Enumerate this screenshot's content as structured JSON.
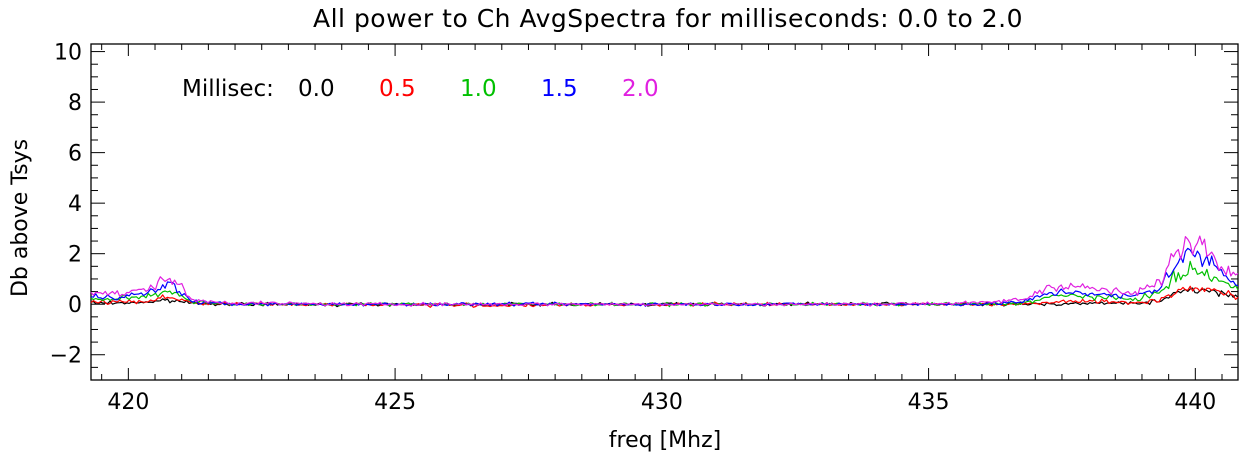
{
  "chart_data": {
    "type": "line",
    "title": "All power to Ch AvgSpectra for milliseconds:  0.0 to  2.0",
    "xlabel": "freq [Mhz]",
    "ylabel": "Db above Tsys",
    "xlim": [
      419.3,
      440.8
    ],
    "ylim": [
      -3,
      10.3
    ],
    "xticks": [
      420,
      425,
      430,
      435,
      440
    ],
    "xtick_labels": [
      "420",
      "425",
      "430",
      "435",
      "440"
    ],
    "yticks": [
      -2,
      0,
      2,
      4,
      6,
      8,
      10
    ],
    "ytick_labels": [
      "−2",
      "0",
      "2",
      "4",
      "6",
      "8",
      "10"
    ],
    "grid": false,
    "legend": {
      "prefix": "Millisec:",
      "placement": "top-left"
    },
    "series": [
      {
        "name": "0.0",
        "color": "#000000",
        "x": [
          419.3,
          419.8,
          420.3,
          420.8,
          421.2,
          422.0,
          424.0,
          427.0,
          430.0,
          433.0,
          436.0,
          436.8,
          437.3,
          437.8,
          438.3,
          438.8,
          439.3,
          439.6,
          439.9,
          440.2,
          440.5,
          440.8
        ],
        "values": [
          0.05,
          0.05,
          0.08,
          0.15,
          0.05,
          0.0,
          0.0,
          0.0,
          0.0,
          0.0,
          0.0,
          0.0,
          0.02,
          0.03,
          0.03,
          0.05,
          0.1,
          0.35,
          0.6,
          0.55,
          0.4,
          0.3
        ]
      },
      {
        "name": "0.5",
        "color": "#ff0000",
        "x": [
          419.3,
          419.8,
          420.3,
          420.8,
          421.2,
          422.0,
          424.0,
          427.0,
          430.0,
          433.0,
          436.0,
          436.8,
          437.3,
          437.8,
          438.3,
          438.8,
          439.3,
          439.6,
          439.9,
          440.2,
          440.5,
          440.8
        ],
        "values": [
          0.1,
          0.1,
          0.12,
          0.3,
          0.05,
          0.0,
          0.0,
          -0.05,
          0.0,
          0.0,
          0.0,
          0.0,
          0.1,
          0.15,
          0.1,
          0.05,
          0.15,
          0.45,
          0.65,
          0.6,
          0.45,
          0.3
        ]
      },
      {
        "name": "1.0",
        "color": "#00c000",
        "x": [
          419.3,
          419.8,
          420.3,
          420.8,
          421.2,
          422.0,
          424.0,
          427.0,
          430.0,
          433.0,
          436.0,
          436.8,
          437.3,
          437.8,
          438.3,
          438.8,
          439.3,
          439.6,
          439.9,
          440.2,
          440.5,
          440.8
        ],
        "values": [
          0.2,
          0.2,
          0.3,
          0.55,
          0.1,
          0.0,
          0.0,
          0.0,
          0.0,
          0.0,
          0.0,
          0.05,
          0.3,
          0.35,
          0.25,
          0.2,
          0.4,
          1.0,
          1.35,
          1.2,
          0.9,
          0.55
        ]
      },
      {
        "name": "1.5",
        "color": "#0000ff",
        "x": [
          419.3,
          419.8,
          420.3,
          420.8,
          421.2,
          422.0,
          424.0,
          427.0,
          430.0,
          433.0,
          436.0,
          436.8,
          437.3,
          437.8,
          438.3,
          438.8,
          439.3,
          439.6,
          439.9,
          440.2,
          440.5,
          440.8
        ],
        "values": [
          0.3,
          0.3,
          0.4,
          0.8,
          0.1,
          0.0,
          0.0,
          0.0,
          0.0,
          0.0,
          0.0,
          0.1,
          0.45,
          0.5,
          0.35,
          0.3,
          0.6,
          1.5,
          2.0,
          1.8,
          1.3,
          0.8
        ]
      },
      {
        "name": "2.0",
        "color": "#e020e0",
        "x": [
          419.3,
          419.8,
          420.3,
          420.8,
          421.2,
          422.0,
          424.0,
          427.0,
          430.0,
          433.0,
          436.0,
          436.8,
          437.3,
          437.8,
          438.3,
          438.8,
          439.3,
          439.6,
          439.9,
          440.2,
          440.5,
          440.8
        ],
        "values": [
          0.5,
          0.4,
          0.55,
          1.1,
          0.15,
          0.05,
          0.0,
          0.0,
          0.0,
          0.0,
          0.05,
          0.2,
          0.75,
          0.7,
          0.55,
          0.4,
          0.8,
          1.9,
          2.6,
          2.3,
          1.7,
          1.1
        ]
      }
    ]
  }
}
